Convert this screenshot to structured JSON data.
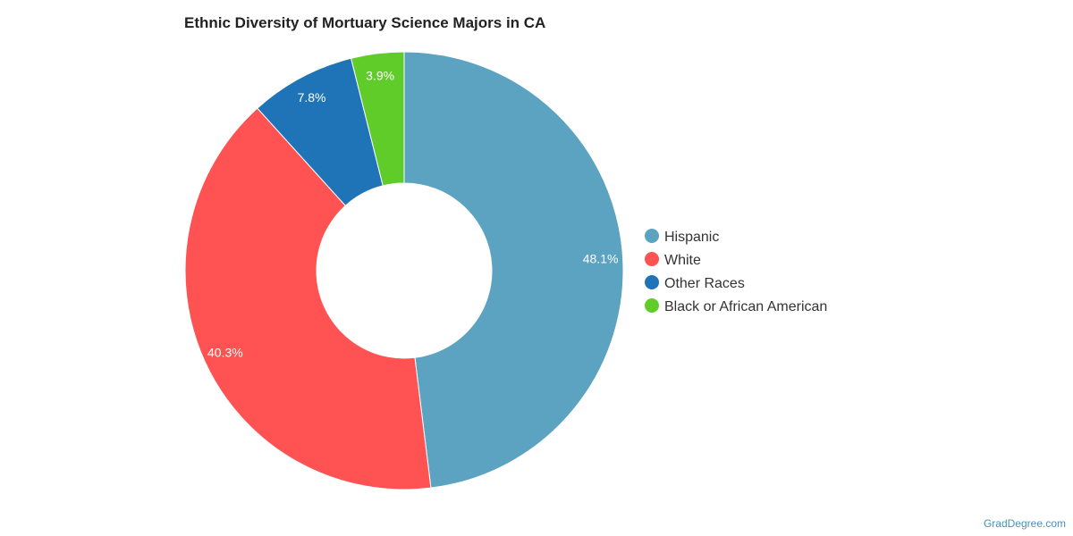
{
  "chart_data": {
    "type": "pie",
    "title": "Ethnic Diversity of Mortuary Science Majors in CA",
    "donut": true,
    "legend_position": "right",
    "slices": [
      {
        "name": "Hispanic",
        "value": 48.1,
        "label": "48.1%",
        "color": "#5ba3c0"
      },
      {
        "name": "White",
        "value": 40.3,
        "label": "40.3%",
        "color": "#ff5252"
      },
      {
        "name": "Other Races",
        "value": 7.8,
        "label": "7.8%",
        "color": "#1f73b7"
      },
      {
        "name": "Black or African American",
        "value": 3.9,
        "label": "3.9%",
        "color": "#5fcc29"
      }
    ]
  },
  "credit": "GradDegree.com"
}
